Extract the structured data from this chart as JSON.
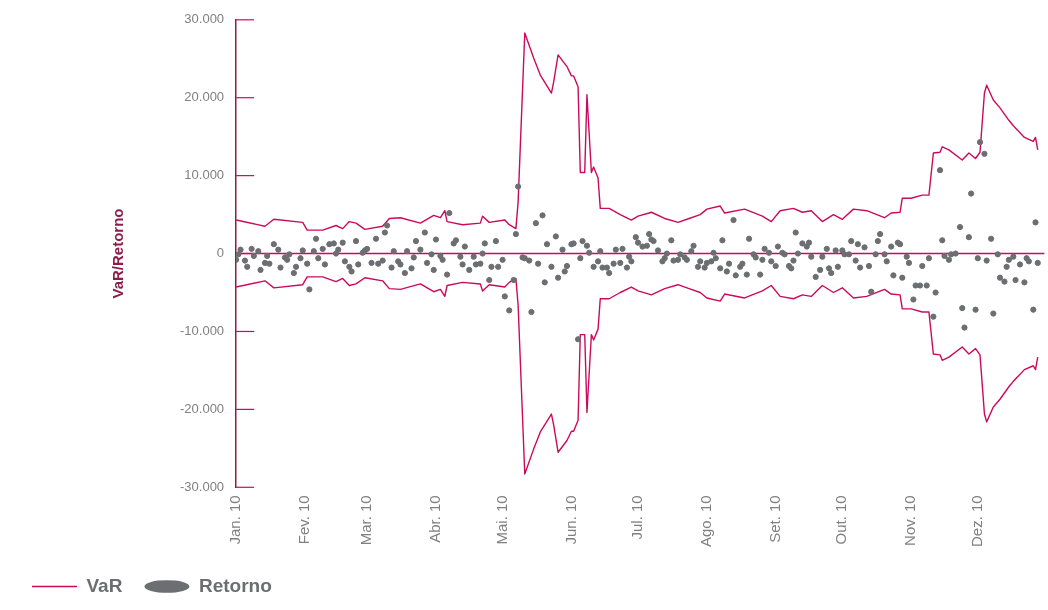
{
  "chart_data": {
    "type": "line",
    "ylabel": "VaR/Retorno",
    "legend": "bottom left",
    "xlim": [
      "2010-01-01",
      "2010-12-31"
    ],
    "xticks": [
      {
        "value": "2010-01-01",
        "label": "Jan. 10"
      },
      {
        "value": "2010-02-01",
        "label": "Fev. 10"
      },
      {
        "value": "2010-03-01",
        "label": "Mar. 10"
      },
      {
        "value": "2010-04-01",
        "label": "Abr. 10"
      },
      {
        "value": "2010-05-01",
        "label": "Mai. 10"
      },
      {
        "value": "2010-06-01",
        "label": "Jun. 10"
      },
      {
        "value": "2010-07-01",
        "label": "Jul. 10"
      },
      {
        "value": "2010-08-01",
        "label": "Ago. 10"
      },
      {
        "value": "2010-09-01",
        "label": "Set. 10"
      },
      {
        "value": "2010-10-01",
        "label": "Out. 10"
      },
      {
        "value": "2010-11-01",
        "label": "Nov. 10"
      },
      {
        "value": "2010-12-01",
        "label": "Dez. 10"
      }
    ],
    "ylim": [
      -30000,
      30000
    ],
    "yticks": [
      {
        "value": -30000,
        "label": "-30.000"
      },
      {
        "value": -20000,
        "label": "-20.000"
      },
      {
        "value": -10000,
        "label": "-10.000"
      },
      0,
      {
        "value": 10000,
        "label": "10.000"
      },
      {
        "value": 20000,
        "label": "20.000"
      },
      {
        "value": 30000,
        "label": "30.000"
      }
    ],
    "ref_lines": [
      {
        "axis": "y",
        "value": 0,
        "color": "#cc0a5b"
      }
    ],
    "x": [
      "2010-01-01",
      "2010-01-14",
      "2010-01-18",
      "2010-01-31",
      "2010-02-02",
      "2010-02-09",
      "2010-02-15",
      "2010-02-18",
      "2010-02-21",
      "2010-02-24",
      "2010-02-28",
      "2010-03-08",
      "2010-03-11",
      "2010-03-16",
      "2010-03-25",
      "2010-03-31",
      "2010-04-03",
      "2010-04-05",
      "2010-04-06",
      "2010-04-13",
      "2010-04-21",
      "2010-04-22",
      "2010-04-25",
      "2010-05-02",
      "2010-05-04",
      "2010-05-07",
      "2010-05-08",
      "2010-05-11",
      "2010-05-15",
      "2010-05-18",
      "2010-05-23",
      "2010-05-24",
      "2010-05-26",
      "2010-05-30",
      "2010-06-01",
      "2010-06-02",
      "2010-06-04",
      "2010-06-05",
      "2010-06-07",
      "2010-06-08",
      "2010-06-10",
      "2010-06-11",
      "2010-06-13",
      "2010-06-14",
      "2010-06-16",
      "2010-06-18",
      "2010-06-23",
      "2010-06-28",
      "2010-07-01",
      "2010-07-06",
      "2010-07-07",
      "2010-07-13",
      "2010-07-19",
      "2010-07-24",
      "2010-07-29",
      "2010-08-01",
      "2010-08-07",
      "2010-08-09",
      "2010-08-18",
      "2010-08-26",
      "2010-08-30",
      "2010-09-03",
      "2010-09-09",
      "2010-09-13",
      "2010-09-17",
      "2010-09-22",
      "2010-09-27",
      "2010-10-01",
      "2010-10-06",
      "2010-10-12",
      "2010-10-20",
      "2010-10-23",
      "2010-10-27",
      "2010-10-28",
      "2010-11-01",
      "2010-11-06",
      "2010-11-09",
      "2010-11-11",
      "2010-11-14",
      "2010-11-15",
      "2010-11-18",
      "2010-11-24",
      "2010-11-27",
      "2010-11-30",
      "2010-12-02",
      "2010-12-04",
      "2010-12-05",
      "2010-12-08",
      "2010-12-11",
      "2010-12-15",
      "2010-12-17",
      "2010-12-22",
      "2010-12-26",
      "2010-12-27",
      "2010-12-28"
    ],
    "series": [
      {
        "name": "VaR",
        "color": "#cc0a5b",
        "marker": "none",
        "line_style": "solid",
        "values": [
          4300,
          3500,
          4400,
          4000,
          3000,
          3000,
          3600,
          3200,
          4100,
          3900,
          3100,
          3500,
          4500,
          4600,
          3900,
          4900,
          4600,
          5500,
          4100,
          3700,
          3900,
          4800,
          4000,
          4300,
          3700,
          3200,
          6600,
          28300,
          25100,
          22900,
          20600,
          22000,
          25500,
          24000,
          22800,
          22800,
          21400,
          10400,
          10400,
          20400,
          10400,
          11100,
          9700,
          5800,
          5800,
          5800,
          5000,
          4300,
          4800,
          5200,
          5300,
          4500,
          4000,
          4500,
          5000,
          5700,
          6100,
          5200,
          5700,
          4800,
          4100,
          5500,
          5800,
          5300,
          5500,
          4100,
          5000,
          4400,
          5700,
          5500,
          4600,
          5200,
          5300,
          7100,
          7100,
          7500,
          7500,
          12900,
          13000,
          13700,
          13300,
          12000,
          12900,
          12200,
          13000,
          20600,
          21600,
          19700,
          18700,
          17100,
          16400,
          14900,
          14400,
          14900,
          13300
        ]
      },
      {
        "color": "#cc0a5b",
        "marker": "none",
        "line_style": "solid",
        "values": [
          -4300,
          -3500,
          -4400,
          -4000,
          -3000,
          -3000,
          -3600,
          -3200,
          -4100,
          -3900,
          -3100,
          -3500,
          -4500,
          -4600,
          -3900,
          -4900,
          -4600,
          -5500,
          -4100,
          -3700,
          -3900,
          -4800,
          -4000,
          -4300,
          -3700,
          -3200,
          -6600,
          -28300,
          -25100,
          -22900,
          -20600,
          -22000,
          -25500,
          -24000,
          -22800,
          -22800,
          -21400,
          -10400,
          -10400,
          -20400,
          -10400,
          -11100,
          -9700,
          -5800,
          -5800,
          -5800,
          -5000,
          -4300,
          -4800,
          -5200,
          -5300,
          -4500,
          -4000,
          -4500,
          -5000,
          -5700,
          -6100,
          -5200,
          -5700,
          -4800,
          -4100,
          -5500,
          -5800,
          -5300,
          -5500,
          -4100,
          -5000,
          -4400,
          -5700,
          -5500,
          -4600,
          -5200,
          -5300,
          -7100,
          -7100,
          -7500,
          -7500,
          -12900,
          -13000,
          -13700,
          -13300,
          -12000,
          -12900,
          -12200,
          -13000,
          -20600,
          -21600,
          -19700,
          -18700,
          -17100,
          -16400,
          -14900,
          -14400,
          -14900,
          -13300
        ]
      },
      {
        "name": "Retorno",
        "type": "scatter",
        "color": "#6d6e71",
        "marker": "circle",
        "x": [
          "2010-01-01",
          "2010-01-02",
          "2010-01-03",
          "2010-01-05",
          "2010-01-06",
          "2010-01-08",
          "2010-01-09",
          "2010-01-11",
          "2010-01-12",
          "2010-01-14",
          "2010-01-15",
          "2010-01-16",
          "2010-01-18",
          "2010-01-20",
          "2010-01-21",
          "2010-01-23",
          "2010-01-24",
          "2010-01-25",
          "2010-01-27",
          "2010-01-28",
          "2010-01-30",
          "2010-01-31",
          "2010-02-02",
          "2010-02-03",
          "2010-02-05",
          "2010-02-06",
          "2010-02-07",
          "2010-02-09",
          "2010-02-10",
          "2010-02-12",
          "2010-02-14",
          "2010-02-15",
          "2010-02-16",
          "2010-02-18",
          "2010-02-19",
          "2010-02-21",
          "2010-02-22",
          "2010-02-24",
          "2010-02-25",
          "2010-02-27",
          "2010-02-28",
          "2010-03-01",
          "2010-03-03",
          "2010-03-05",
          "2010-03-06",
          "2010-03-08",
          "2010-03-09",
          "2010-03-10",
          "2010-03-12",
          "2010-03-13",
          "2010-03-15",
          "2010-03-16",
          "2010-03-18",
          "2010-03-19",
          "2010-03-21",
          "2010-03-22",
          "2010-03-23",
          "2010-03-25",
          "2010-03-27",
          "2010-03-28",
          "2010-03-30",
          "2010-03-31",
          "2010-04-01",
          "2010-04-03",
          "2010-04-04",
          "2010-04-06",
          "2010-04-07",
          "2010-04-09",
          "2010-04-10",
          "2010-04-12",
          "2010-04-13",
          "2010-04-14",
          "2010-04-16",
          "2010-04-18",
          "2010-04-19",
          "2010-04-21",
          "2010-04-22",
          "2010-04-23",
          "2010-04-25",
          "2010-04-26",
          "2010-04-28",
          "2010-04-29",
          "2010-05-01",
          "2010-05-02",
          "2010-05-04",
          "2010-05-06",
          "2010-05-07",
          "2010-05-08",
          "2010-05-10",
          "2010-05-11",
          "2010-05-13",
          "2010-05-14",
          "2010-05-16",
          "2010-05-17",
          "2010-05-19",
          "2010-05-20",
          "2010-05-21",
          "2010-05-23",
          "2010-05-25",
          "2010-05-26",
          "2010-05-28",
          "2010-05-29",
          "2010-05-30",
          "2010-06-01",
          "2010-06-02",
          "2010-06-04",
          "2010-06-05",
          "2010-06-06",
          "2010-06-08",
          "2010-06-09",
          "2010-06-11",
          "2010-06-13",
          "2010-06-14",
          "2010-06-15",
          "2010-06-17",
          "2010-06-18",
          "2010-06-20",
          "2010-06-21",
          "2010-06-23",
          "2010-06-24",
          "2010-06-26",
          "2010-06-27",
          "2010-06-28",
          "2010-06-30",
          "2010-07-01",
          "2010-07-03",
          "2010-07-05",
          "2010-07-06",
          "2010-07-07",
          "2010-07-08",
          "2010-07-10",
          "2010-07-12",
          "2010-07-13",
          "2010-07-14",
          "2010-07-16",
          "2010-07-17",
          "2010-07-19",
          "2010-07-20",
          "2010-07-22",
          "2010-07-23",
          "2010-07-25",
          "2010-07-26",
          "2010-07-28",
          "2010-07-29",
          "2010-07-31",
          "2010-08-01",
          "2010-08-03",
          "2010-08-04",
          "2010-08-05",
          "2010-08-07",
          "2010-08-08",
          "2010-08-10",
          "2010-08-11",
          "2010-08-13",
          "2010-08-14",
          "2010-08-16",
          "2010-08-17",
          "2010-08-19",
          "2010-08-20",
          "2010-08-22",
          "2010-08-23",
          "2010-08-25",
          "2010-08-26",
          "2010-08-27",
          "2010-08-29",
          "2010-08-30",
          "2010-09-01",
          "2010-09-02",
          "2010-09-04",
          "2010-09-05",
          "2010-09-07",
          "2010-09-08",
          "2010-09-09",
          "2010-09-10",
          "2010-09-11",
          "2010-09-13",
          "2010-09-15",
          "2010-09-16",
          "2010-09-17",
          "2010-09-19",
          "2010-09-21",
          "2010-09-22",
          "2010-09-24",
          "2010-09-25",
          "2010-09-26",
          "2010-09-28",
          "2010-09-29",
          "2010-10-01",
          "2010-10-02",
          "2010-10-04",
          "2010-10-05",
          "2010-10-07",
          "2010-10-08",
          "2010-10-09",
          "2010-10-11",
          "2010-10-13",
          "2010-10-14",
          "2010-10-16",
          "2010-10-17",
          "2010-10-18",
          "2010-10-20",
          "2010-10-21",
          "2010-10-23",
          "2010-10-24",
          "2010-10-26",
          "2010-10-27",
          "2010-10-28",
          "2010-10-30",
          "2010-10-31",
          "2010-11-02",
          "2010-11-03",
          "2010-11-05",
          "2010-11-06",
          "2010-11-08",
          "2010-11-09",
          "2010-11-11",
          "2010-11-12",
          "2010-11-14",
          "2010-11-15",
          "2010-11-16",
          "2010-11-18",
          "2010-11-19",
          "2010-11-21",
          "2010-11-23",
          "2010-11-24",
          "2010-11-25",
          "2010-11-27",
          "2010-11-28",
          "2010-11-30",
          "2010-12-01",
          "2010-12-02",
          "2010-12-04",
          "2010-12-05",
          "2010-12-07",
          "2010-12-08",
          "2010-12-10",
          "2010-12-11",
          "2010-12-13",
          "2010-12-14",
          "2010-12-15",
          "2010-12-17",
          "2010-12-18",
          "2010-12-20",
          "2010-12-22",
          "2010-12-23",
          "2010-12-24",
          "2010-12-26",
          "2010-12-27",
          "2010-12-28"
        ],
        "values": [
          -800,
          -100,
          500,
          -900,
          -1700,
          600,
          -300,
          300,
          -2100,
          -1200,
          -300,
          -1300,
          1200,
          500,
          -1800,
          -500,
          -800,
          -100,
          -2500,
          -1700,
          -600,
          400,
          -1300,
          -4600,
          300,
          1900,
          -600,
          600,
          -1400,
          1200,
          1300,
          0,
          500,
          1400,
          -1000,
          -1700,
          -2300,
          1600,
          -1400,
          100,
          400,
          600,
          -1200,
          1900,
          -1300,
          -900,
          2700,
          3600,
          -1800,
          300,
          -1000,
          -1400,
          -2500,
          300,
          -1900,
          -500,
          1600,
          500,
          2700,
          -1200,
          -100,
          -2100,
          1800,
          -300,
          -800,
          -2700,
          5200,
          1300,
          1700,
          -400,
          -1400,
          900,
          -2100,
          -400,
          -1400,
          -1300,
          0,
          1300,
          -3400,
          -1700,
          1600,
          -1700,
          -800,
          -5500,
          -7300,
          -3400,
          2500,
          8600,
          -500,
          -600,
          -900,
          -7500,
          3900,
          -1300,
          4900,
          -3700,
          1200,
          -1700,
          2200,
          -3100,
          500,
          -2300,
          -1600,
          1200,
          1300,
          -11000,
          -600,
          1600,
          1000,
          100,
          -1700,
          -1000,
          300,
          -1800,
          -1800,
          -2500,
          -1300,
          500,
          -1200,
          600,
          -1800,
          -400,
          -1000,
          2100,
          1400,
          900,
          1000,
          2500,
          1800,
          1600,
          400,
          -1000,
          -600,
          0,
          1700,
          -900,
          -800,
          -100,
          -500,
          -800,
          300,
          1000,
          -1700,
          -1000,
          -1800,
          -1200,
          -1000,
          100,
          -600,
          -1900,
          1700,
          -2300,
          -1300,
          4300,
          -2800,
          -1700,
          -1300,
          -2700,
          1900,
          -100,
          -500,
          -2700,
          -800,
          600,
          100,
          -1000,
          -1600,
          900,
          100,
          -100,
          -1600,
          -1900,
          -900,
          2700,
          0,
          1300,
          900,
          1400,
          -400,
          -3000,
          -2100,
          -400,
          600,
          -1900,
          -2500,
          400,
          -1700,
          400,
          -100,
          -100,
          1600,
          -900,
          1200,
          -1800,
          800,
          -1600,
          -4900,
          -100,
          1600,
          2500,
          -100,
          -1000,
          900,
          -2800,
          1400,
          1200,
          -3100,
          -400,
          -1200,
          -5900,
          -4100,
          -4100,
          -1600,
          -4100,
          -600,
          -8100,
          -5000,
          10700,
          1700,
          -300,
          -800,
          -100,
          0,
          3400,
          -7000,
          -9500,
          2100,
          7700,
          -7200,
          -600,
          14300,
          12800,
          -900,
          1900,
          -7700,
          -100,
          -3100,
          -3600,
          -1700,
          -800,
          -400,
          -3400,
          -1400,
          -3700,
          -600,
          -1000,
          -7200,
          4000,
          -1200
        ]
      }
    ]
  }
}
